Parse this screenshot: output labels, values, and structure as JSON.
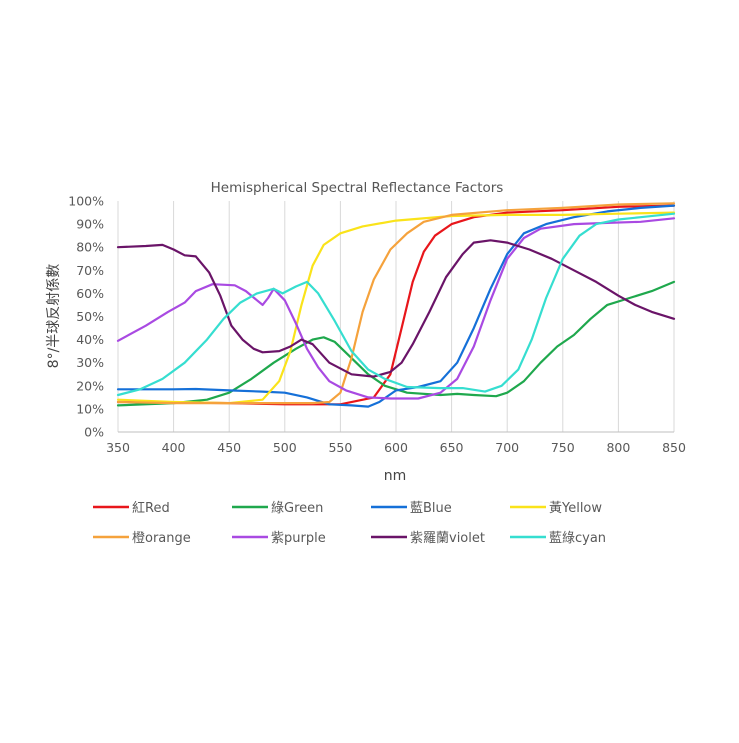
{
  "chart_data": {
    "type": "line",
    "title": "Hemispherical Spectral Reflectance Factors",
    "xlabel": "nm",
    "ylabel": "8°/半球反射係數",
    "xlim": [
      350,
      850
    ],
    "ylim": [
      0,
      100
    ],
    "x_ticks": [
      "350",
      "400",
      "450",
      "500",
      "550",
      "600",
      "650",
      "700",
      "750",
      "800",
      "850"
    ],
    "y_ticks": [
      "0%",
      "10%",
      "20%",
      "30%",
      "40%",
      "50%",
      "60%",
      "70%",
      "80%",
      "90%",
      "100%"
    ],
    "grid": "vertical",
    "legend_position": "bottom",
    "series": [
      {
        "name": "紅Red",
        "color": "#e8161b",
        "points": [
          [
            350,
            13
          ],
          [
            400,
            12.8
          ],
          [
            450,
            12.5
          ],
          [
            500,
            12
          ],
          [
            550,
            12
          ],
          [
            580,
            15
          ],
          [
            595,
            25
          ],
          [
            605,
            45
          ],
          [
            615,
            65
          ],
          [
            625,
            78
          ],
          [
            635,
            85
          ],
          [
            650,
            90
          ],
          [
            670,
            93
          ],
          [
            700,
            95
          ],
          [
            750,
            96
          ],
          [
            800,
            97.5
          ],
          [
            850,
            98
          ]
        ]
      },
      {
        "name": "綠Green",
        "color": "#1fa84d",
        "points": [
          [
            350,
            11.5
          ],
          [
            400,
            12.5
          ],
          [
            430,
            14
          ],
          [
            450,
            17
          ],
          [
            470,
            23
          ],
          [
            490,
            30
          ],
          [
            510,
            36
          ],
          [
            525,
            40
          ],
          [
            535,
            41
          ],
          [
            545,
            39
          ],
          [
            560,
            32
          ],
          [
            575,
            25
          ],
          [
            590,
            20
          ],
          [
            610,
            17
          ],
          [
            640,
            16
          ],
          [
            655,
            16.5
          ],
          [
            670,
            16
          ],
          [
            690,
            15.5
          ],
          [
            700,
            17
          ],
          [
            715,
            22
          ],
          [
            730,
            30
          ],
          [
            745,
            37
          ],
          [
            760,
            42
          ],
          [
            775,
            49
          ],
          [
            790,
            55
          ],
          [
            810,
            58
          ],
          [
            830,
            61
          ],
          [
            850,
            65
          ]
        ]
      },
      {
        "name": "藍Blue",
        "color": "#1570d8",
        "points": [
          [
            350,
            18.5
          ],
          [
            400,
            18.5
          ],
          [
            420,
            18.6
          ],
          [
            450,
            18
          ],
          [
            480,
            17.5
          ],
          [
            500,
            17
          ],
          [
            520,
            15
          ],
          [
            540,
            12
          ],
          [
            560,
            11.5
          ],
          [
            575,
            11
          ],
          [
            585,
            13
          ],
          [
            600,
            18
          ],
          [
            620,
            19.5
          ],
          [
            640,
            22
          ],
          [
            655,
            30
          ],
          [
            670,
            45
          ],
          [
            685,
            62
          ],
          [
            700,
            77
          ],
          [
            715,
            86
          ],
          [
            735,
            90
          ],
          [
            760,
            93
          ],
          [
            790,
            95.5
          ],
          [
            820,
            97
          ],
          [
            850,
            98
          ]
        ]
      },
      {
        "name": "黃Yellow",
        "color": "#fae31a",
        "points": [
          [
            350,
            14
          ],
          [
            400,
            13
          ],
          [
            450,
            12.5
          ],
          [
            480,
            14
          ],
          [
            495,
            22
          ],
          [
            505,
            35
          ],
          [
            515,
            55
          ],
          [
            525,
            72
          ],
          [
            535,
            81
          ],
          [
            550,
            86
          ],
          [
            570,
            89
          ],
          [
            600,
            91.5
          ],
          [
            650,
            93.5
          ],
          [
            700,
            94
          ],
          [
            750,
            94
          ],
          [
            800,
            94.5
          ],
          [
            850,
            95
          ]
        ]
      },
      {
        "name": "橙orange",
        "color": "#f5a23c",
        "points": [
          [
            350,
            13
          ],
          [
            400,
            12.5
          ],
          [
            450,
            12.5
          ],
          [
            500,
            12.5
          ],
          [
            525,
            12.5
          ],
          [
            540,
            13
          ],
          [
            550,
            17
          ],
          [
            560,
            32
          ],
          [
            570,
            52
          ],
          [
            580,
            66
          ],
          [
            595,
            79
          ],
          [
            610,
            86
          ],
          [
            625,
            91
          ],
          [
            650,
            94
          ],
          [
            700,
            96
          ],
          [
            750,
            97
          ],
          [
            800,
            98.5
          ],
          [
            850,
            99
          ]
        ]
      },
      {
        "name": "紫purple",
        "color": "#a94ae2",
        "points": [
          [
            350,
            39.5
          ],
          [
            375,
            46
          ],
          [
            395,
            52
          ],
          [
            410,
            56
          ],
          [
            420,
            61
          ],
          [
            435,
            64
          ],
          [
            455,
            63.5
          ],
          [
            465,
            61
          ],
          [
            475,
            57
          ],
          [
            480,
            55
          ],
          [
            485,
            58
          ],
          [
            490,
            62
          ],
          [
            500,
            57
          ],
          [
            510,
            47
          ],
          [
            520,
            36
          ],
          [
            530,
            28
          ],
          [
            540,
            22
          ],
          [
            555,
            18
          ],
          [
            575,
            15
          ],
          [
            595,
            14.5
          ],
          [
            620,
            14.5
          ],
          [
            640,
            17
          ],
          [
            655,
            23
          ],
          [
            670,
            37
          ],
          [
            685,
            57
          ],
          [
            700,
            75
          ],
          [
            715,
            84
          ],
          [
            730,
            88
          ],
          [
            760,
            90
          ],
          [
            790,
            90.5
          ],
          [
            820,
            91
          ],
          [
            850,
            92.5
          ]
        ]
      },
      {
        "name": "紫羅蘭violet",
        "color": "#6a1468",
        "points": [
          [
            350,
            80
          ],
          [
            375,
            80.5
          ],
          [
            390,
            81
          ],
          [
            400,
            79
          ],
          [
            410,
            76.5
          ],
          [
            420,
            76
          ],
          [
            432,
            69
          ],
          [
            442,
            59
          ],
          [
            452,
            46
          ],
          [
            462,
            40
          ],
          [
            472,
            36
          ],
          [
            480,
            34.5
          ],
          [
            495,
            35
          ],
          [
            505,
            37
          ],
          [
            515,
            40
          ],
          [
            525,
            38
          ],
          [
            540,
            30
          ],
          [
            560,
            25
          ],
          [
            580,
            24
          ],
          [
            595,
            26
          ],
          [
            605,
            30
          ],
          [
            615,
            38
          ],
          [
            630,
            52
          ],
          [
            645,
            67
          ],
          [
            660,
            77
          ],
          [
            670,
            82
          ],
          [
            685,
            83
          ],
          [
            700,
            82
          ],
          [
            720,
            79
          ],
          [
            740,
            75
          ],
          [
            760,
            70
          ],
          [
            780,
            65
          ],
          [
            800,
            59
          ],
          [
            815,
            55
          ],
          [
            830,
            52
          ],
          [
            850,
            49
          ]
        ]
      },
      {
        "name": "藍綠cyan",
        "color": "#36ded0",
        "points": [
          [
            350,
            16
          ],
          [
            370,
            18.5
          ],
          [
            390,
            23
          ],
          [
            410,
            30
          ],
          [
            430,
            40
          ],
          [
            445,
            49
          ],
          [
            460,
            56
          ],
          [
            475,
            60
          ],
          [
            490,
            62
          ],
          [
            498,
            60
          ],
          [
            510,
            63
          ],
          [
            520,
            65
          ],
          [
            530,
            60
          ],
          [
            545,
            48
          ],
          [
            560,
            35
          ],
          [
            575,
            27
          ],
          [
            590,
            23
          ],
          [
            610,
            19.5
          ],
          [
            640,
            19
          ],
          [
            660,
            19
          ],
          [
            680,
            17.5
          ],
          [
            695,
            20
          ],
          [
            710,
            27
          ],
          [
            722,
            40
          ],
          [
            735,
            58
          ],
          [
            750,
            75
          ],
          [
            765,
            85
          ],
          [
            780,
            90
          ],
          [
            800,
            92
          ],
          [
            820,
            93
          ],
          [
            850,
            94.5
          ]
        ]
      }
    ]
  }
}
